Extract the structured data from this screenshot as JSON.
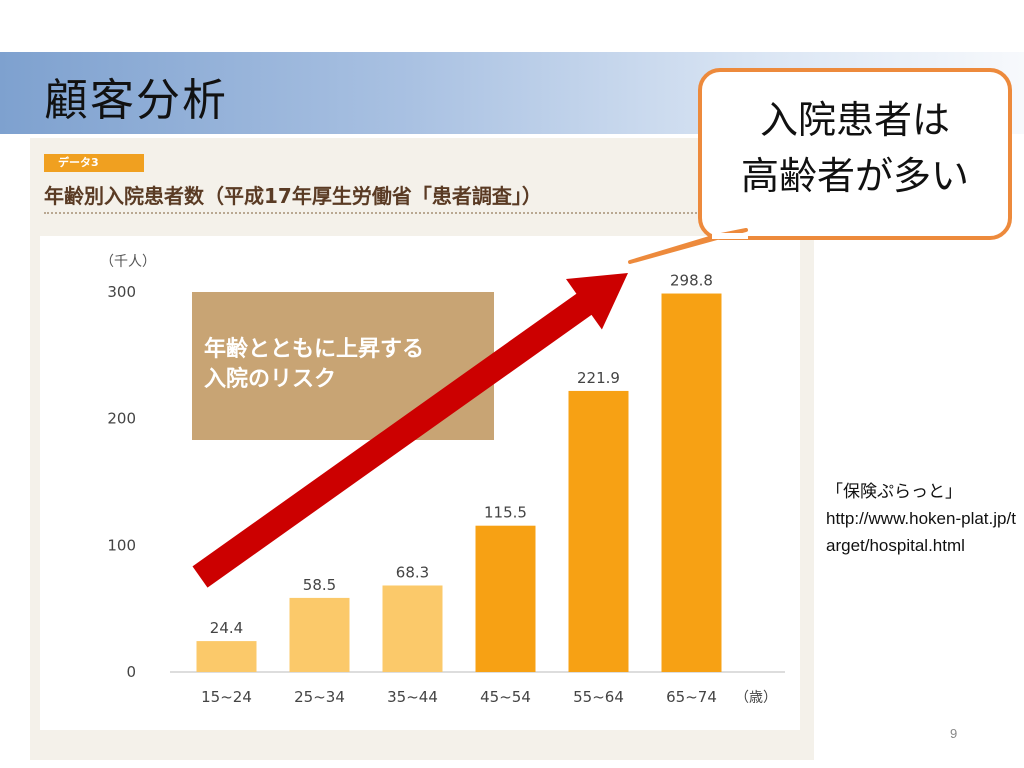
{
  "slide": {
    "title": "顧客分析",
    "page_number": "9"
  },
  "figure": {
    "tag": "データ3",
    "title": "年齢別入院患者数（平成17年厚生労働省「患者調査」）"
  },
  "callout": {
    "line1": "入院患者は",
    "line2": "高齢者が多い"
  },
  "source": {
    "name": "「保険ぷらっと」",
    "url": "http://www.hoken-plat.jp/target/hospital.html"
  },
  "annotation": {
    "line1": "年齢とともに上昇する",
    "line2": "入院のリスク"
  },
  "chart_data": {
    "type": "bar",
    "title": "年齢別入院患者数（平成17年厚生労働省「患者調査」）",
    "ylabel": "（千人）",
    "xunit": "（歳）",
    "categories": [
      "15~24",
      "25~34",
      "35~44",
      "45~54",
      "55~64",
      "65~74"
    ],
    "values": [
      24.4,
      58.5,
      68.3,
      115.5,
      221.9,
      298.8
    ],
    "data_labels": [
      "24.4",
      "58.5",
      "68.3",
      "115.5",
      "221.9",
      "298.8"
    ],
    "yticks": [
      0,
      100,
      200,
      300
    ],
    "ylim": [
      0,
      300
    ],
    "grid": false,
    "colors": {
      "light_bar": "#fbc96a",
      "dark_bar": "#f7a114",
      "arrow": "#cc0000",
      "annotation_box": "#c8a474"
    }
  }
}
